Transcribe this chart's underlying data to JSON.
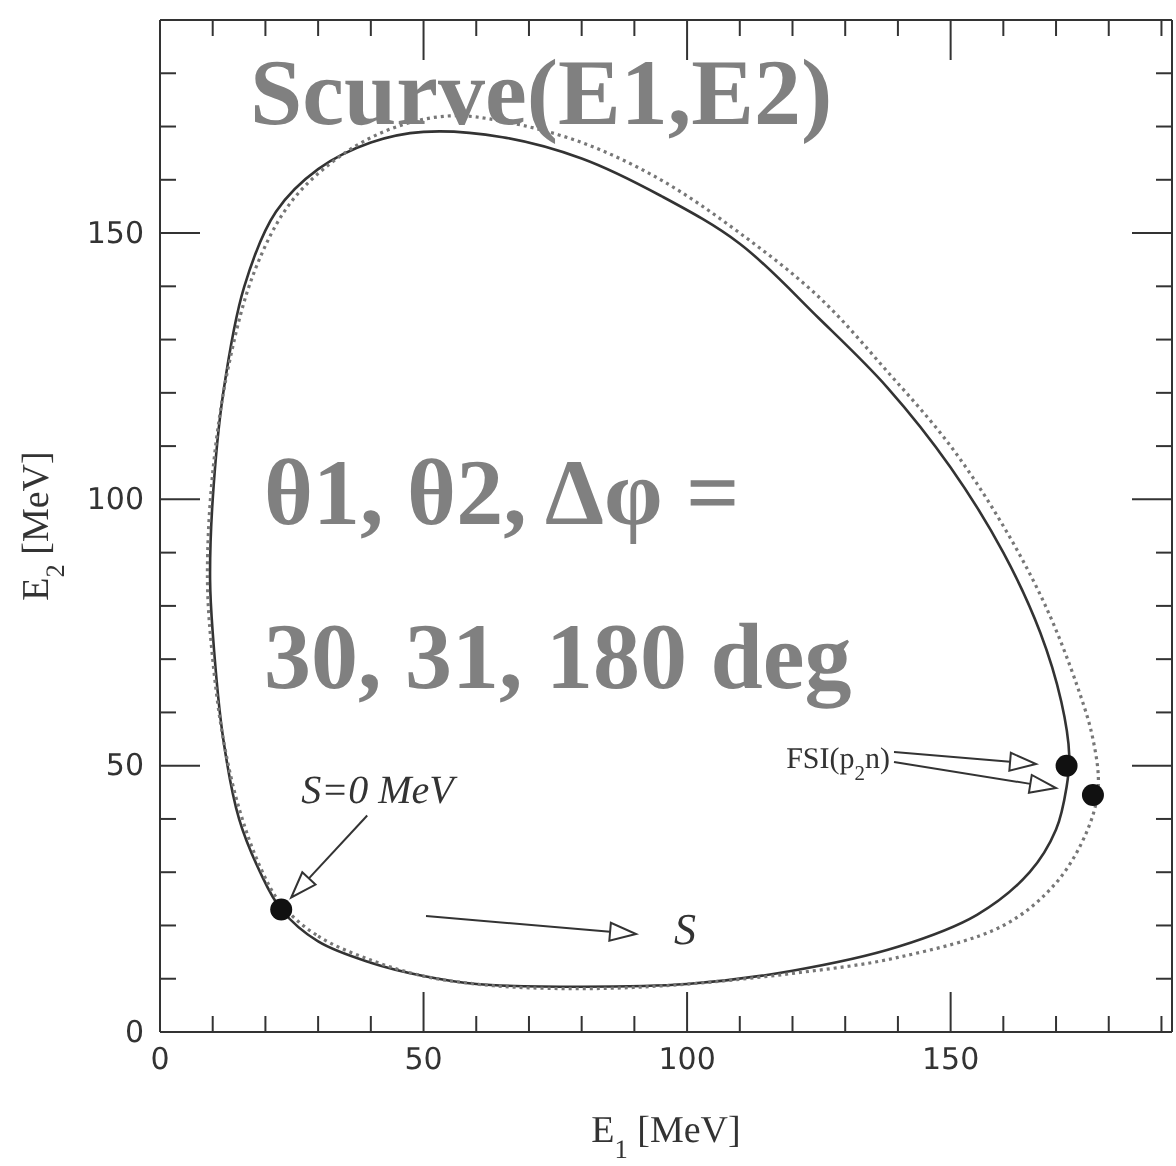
{
  "chart_data": {
    "type": "scatter",
    "title": "Scurve(E1,E2)",
    "xlabel": "E$_{1}$ [MeV]",
    "ylabel": "E$_{2}$ [MeV]",
    "xlim": [
      0,
      192
    ],
    "ylim": [
      0,
      190
    ],
    "xticks": [
      0,
      {
        "value": 10,
        "label": null
      },
      {
        "value": 20,
        "label": null
      },
      {
        "value": 30,
        "label": null
      },
      {
        "value": 40,
        "label": null
      },
      50,
      {
        "value": 60,
        "label": null
      },
      {
        "value": 70,
        "label": null
      },
      {
        "value": 80,
        "label": null
      },
      {
        "value": 90,
        "label": null
      },
      100,
      {
        "value": 110,
        "label": null
      },
      {
        "value": 120,
        "label": null
      },
      {
        "value": 130,
        "label": null
      },
      {
        "value": 140,
        "label": null
      },
      150,
      {
        "value": 160,
        "label": null
      },
      {
        "value": 170,
        "label": null
      },
      {
        "value": 180,
        "label": null
      },
      {
        "value": 190,
        "label": null
      }
    ],
    "yticks": [
      0,
      {
        "value": 10,
        "label": null
      },
      {
        "value": 20,
        "label": null
      },
      {
        "value": 30,
        "label": null
      },
      {
        "value": 40,
        "label": null
      },
      50,
      {
        "value": 60,
        "label": null
      },
      {
        "value": 70,
        "label": null
      },
      {
        "value": 80,
        "label": null
      },
      {
        "value": 90,
        "label": null
      },
      100,
      {
        "value": 110,
        "label": null
      },
      {
        "value": 120,
        "label": null
      },
      {
        "value": 130,
        "label": null
      },
      {
        "value": 140,
        "label": null
      },
      150,
      {
        "value": 160,
        "label": null
      },
      {
        "value": 170,
        "label": null
      },
      {
        "value": 180,
        "label": null
      }
    ],
    "grid": false,
    "series": [
      {
        "color": "#111111",
        "marker": "circle",
        "x": [
          23,
          172,
          177
        ],
        "values": [
          23,
          50,
          44.5
        ]
      }
    ],
    "annotations": [
      "θ1, θ2, Δφ =",
      "30, 31, 180 deg",
      {
        "text": "S=0 MeV",
        "x": 23,
        "y": 23
      },
      "FSI(p$_{2}$n)",
      "S"
    ]
  }
}
